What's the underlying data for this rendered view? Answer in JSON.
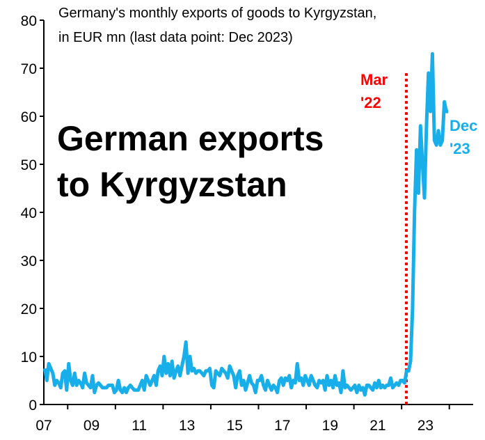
{
  "chart_data": {
    "type": "line",
    "title": "Germany's monthly exports of goods to Kyrgyzstan, in EUR mn (last data point: Dec 2023)",
    "title_lines": [
      "Germany's monthly exports of goods to Kyrgyzstan,",
      "in EUR mn (last data point: Dec 2023)"
    ],
    "headline_lines": [
      "German exports",
      "to Kyrgyzstan"
    ],
    "xlabel": "",
    "ylabel": "",
    "xlim": [
      2007,
      2025
    ],
    "ylim": [
      0,
      80
    ],
    "yticks": [
      0,
      10,
      20,
      30,
      40,
      50,
      60,
      70,
      80
    ],
    "xticks": [
      {
        "value": 2007,
        "label": "07"
      },
      {
        "value": 2009,
        "label": "09"
      },
      {
        "value": 2011,
        "label": "11"
      },
      {
        "value": 2013,
        "label": "13"
      },
      {
        "value": 2015,
        "label": "15"
      },
      {
        "value": 2017,
        "label": "17"
      },
      {
        "value": 2019,
        "label": "19"
      },
      {
        "value": 2021,
        "label": "21"
      },
      {
        "value": 2023,
        "label": "23"
      }
    ],
    "grid": false,
    "series": [
      {
        "name": "German exports to Kyrgyzstan",
        "color": "#18aeea",
        "start": "2007-01",
        "frequency": "monthly",
        "values": [
          7.5,
          5,
          8.5,
          7.5,
          6.5,
          4,
          5,
          4.5,
          3.5,
          6.5,
          7,
          3,
          8.5,
          5,
          4,
          6.5,
          4,
          5,
          4.5,
          3.5,
          6.5,
          4.5,
          4,
          3.5,
          6,
          2.5,
          4,
          4.5,
          4,
          3.5,
          3.5,
          3.5,
          4,
          4,
          4,
          2.5,
          3,
          5,
          3,
          2.5,
          3.5,
          2.5,
          3.5,
          4,
          3.5,
          3,
          3,
          3,
          4,
          5,
          3,
          6,
          5,
          4,
          5,
          6,
          4,
          7,
          8,
          6,
          10,
          6.5,
          8.5,
          6,
          9,
          5.5,
          7,
          8,
          6,
          8,
          10,
          13,
          6.5,
          10,
          7,
          7.5,
          6.5,
          7,
          7,
          6.5,
          6,
          7,
          7,
          7.5,
          4,
          3.5,
          7,
          6.5,
          6,
          7.5,
          7,
          6.5,
          5.5,
          8,
          7,
          6,
          3.5,
          6,
          7,
          4,
          5,
          3,
          4.5,
          6,
          4.5,
          4,
          2.5,
          5,
          5,
          6,
          4,
          3,
          5,
          4,
          3,
          4,
          3.5,
          2.5,
          5,
          5.5,
          4,
          5.5,
          5,
          6,
          3.5,
          5,
          4.5,
          8.5,
          5,
          5.5,
          4,
          6,
          5,
          4,
          6,
          5,
          4,
          3.5,
          5,
          4.5,
          5,
          3,
          6,
          4,
          5,
          3.5,
          6,
          4,
          4.5,
          2.5,
          7,
          3.5,
          4,
          3.5,
          3,
          3.5,
          4,
          2.5,
          4,
          3,
          3.5,
          2,
          4,
          4,
          3.5,
          3,
          4.5,
          3.5,
          5,
          3.5,
          4,
          3.5,
          4,
          4,
          5.5,
          3.5,
          4,
          4.5,
          4,
          5,
          5,
          4.5,
          7,
          7,
          9,
          20,
          40,
          53,
          44,
          58,
          50,
          43,
          58,
          69,
          61,
          73,
          55,
          54,
          57,
          54,
          55,
          63,
          61,
          61
        ]
      }
    ],
    "annotations": [
      {
        "text": "Mar '22",
        "lines": [
          "Mar",
          "'22"
        ],
        "x": 2022.2,
        "style": "dotted vertical line",
        "color": "#ff0000"
      },
      {
        "text": "Dec '23",
        "lines": [
          "Dec",
          "'23"
        ],
        "color": "#18aeea"
      }
    ]
  }
}
